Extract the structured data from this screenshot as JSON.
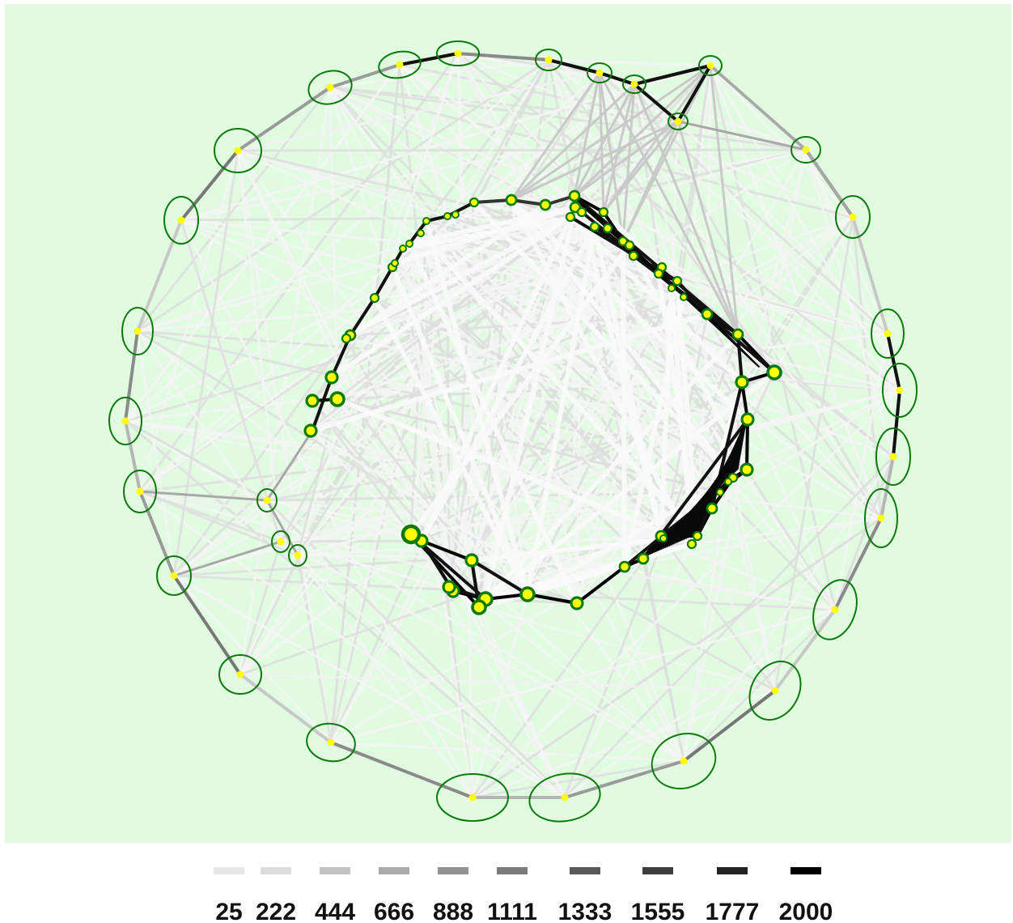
{
  "colors": {
    "background": "#e0fbe0",
    "node_fill": "#ffff00",
    "node_ring": "#0a7a0a",
    "edge_light": "#ececec",
    "edge_dark": "#000000"
  },
  "legend": {
    "items": [
      {
        "label": "25",
        "color": "#e6e6e6"
      },
      {
        "label": "222",
        "color": "#dcdcdc"
      },
      {
        "label": "444",
        "color": "#c4c4c4"
      },
      {
        "label": "666",
        "color": "#aaaaaa"
      },
      {
        "label": "888",
        "color": "#929292"
      },
      {
        "label": "1111",
        "color": "#7a7a7a"
      },
      {
        "label": "1333",
        "color": "#5a5a5a"
      },
      {
        "label": "1555",
        "color": "#3e3e3e"
      },
      {
        "label": "1777",
        "color": "#222222"
      },
      {
        "label": "2000",
        "color": "#000000"
      }
    ]
  }
}
